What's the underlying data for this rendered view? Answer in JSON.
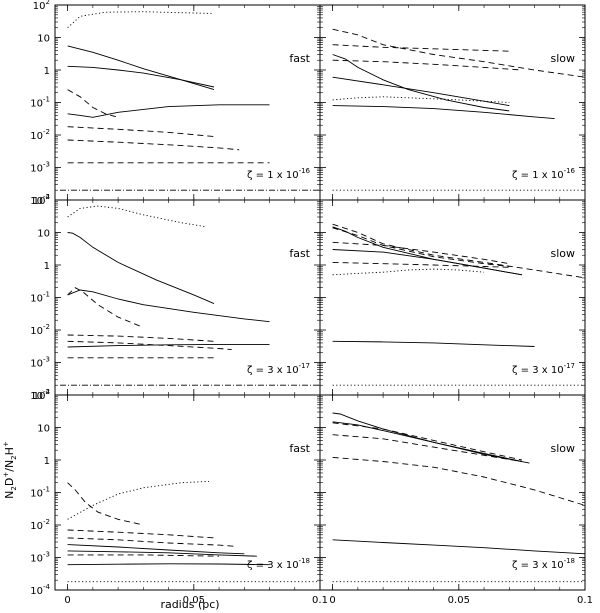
{
  "figure": {
    "ylabel_main": "N",
    "ylabel_sub1": "2",
    "ylabel_mid": "D",
    "ylabel_sup1": "+",
    "ylabel_slash": "/N",
    "ylabel_sub2": "2",
    "ylabel_end": "H",
    "ylabel_sup2": "+",
    "xlabel": "radius (pc)"
  },
  "chart_data": {
    "type": "line",
    "x_range": [
      -0.005,
      0.1
    ],
    "y_range_log10": [
      -4,
      2
    ],
    "x_ticks": [
      0,
      0.05,
      0.1
    ],
    "x_tick_labels": [
      "0",
      "0.05",
      "0.1"
    ],
    "y_ticks_log10": [
      -4,
      -3,
      -2,
      -1,
      0,
      1,
      2
    ],
    "y_tick_labels": [
      {
        "base": "10",
        "exp": "-4"
      },
      {
        "base": "10",
        "exp": "-3"
      },
      {
        "base": "10",
        "exp": "-2"
      },
      {
        "base": "10",
        "exp": "-1"
      },
      {
        "base": "1",
        "exp": ""
      },
      {
        "base": "10",
        "exp": ""
      },
      {
        "base": "10",
        "exp": "2"
      }
    ],
    "panels": [
      {
        "label": "fast",
        "zeta": {
          "prefix": "ζ = 1 x 10",
          "exp": "-16"
        },
        "series": [
          {
            "style": "dotted",
            "x": [
              0,
              0.005,
              0.015,
              0.03,
              0.045,
              0.057
            ],
            "y": [
              20,
              45,
              60,
              62,
              58,
              55
            ]
          },
          {
            "style": "solid",
            "x": [
              0,
              0.01,
              0.02,
              0.03,
              0.045,
              0.058
            ],
            "y": [
              5.5,
              3.5,
              2,
              1.1,
              0.5,
              0.25
            ]
          },
          {
            "style": "solid",
            "x": [
              0,
              0.01,
              0.02,
              0.03,
              0.045,
              0.058
            ],
            "y": [
              1.3,
              1.2,
              1.0,
              0.8,
              0.5,
              0.3
            ]
          },
          {
            "style": "solid",
            "x": [
              0,
              0.005,
              0.01,
              0.02,
              0.04,
              0.06,
              0.08
            ],
            "y": [
              0.045,
              0.04,
              0.035,
              0.05,
              0.075,
              0.085,
              0.085
            ]
          },
          {
            "style": "dashed",
            "x": [
              0,
              0.005,
              0.01,
              0.015,
              0.02
            ],
            "y": [
              0.25,
              0.15,
              0.07,
              0.045,
              0.035
            ]
          },
          {
            "style": "dashed",
            "x": [
              0,
              0.02,
              0.04,
              0.058
            ],
            "y": [
              0.018,
              0.015,
              0.012,
              0.009
            ]
          },
          {
            "style": "dashed",
            "x": [
              0,
              0.02,
              0.04,
              0.06,
              0.068
            ],
            "y": [
              0.007,
              0.006,
              0.005,
              0.004,
              0.0035
            ]
          },
          {
            "style": "dashed",
            "x": [
              0,
              0.04,
              0.08
            ],
            "y": [
              0.0014,
              0.0014,
              0.0014
            ]
          },
          {
            "style": "dashdot",
            "x": [
              -0.003,
              0.1
            ],
            "y": [
              0.0002,
              0.0002
            ]
          }
        ]
      },
      {
        "label": "slow",
        "zeta": {
          "prefix": "ζ = 1 x 10",
          "exp": "-16"
        },
        "series": [
          {
            "style": "dashed",
            "x": [
              0,
              0.01,
              0.02,
              0.04,
              0.06,
              0.08,
              0.1
            ],
            "y": [
              18,
              12,
              6,
              3,
              1.8,
              1,
              0.6
            ]
          },
          {
            "style": "dashed",
            "x": [
              0,
              0.02,
              0.04,
              0.06,
              0.07
            ],
            "y": [
              6,
              5,
              4.5,
              4,
              3.8
            ]
          },
          {
            "style": "dashed",
            "x": [
              0,
              0.02,
              0.04,
              0.06,
              0.075
            ],
            "y": [
              2,
              1.8,
              1.5,
              1.2,
              1
            ]
          },
          {
            "style": "solid",
            "x": [
              0,
              0.005,
              0.01,
              0.02,
              0.03,
              0.045,
              0.06,
              0.07
            ],
            "y": [
              3,
              2.2,
              1.2,
              0.5,
              0.25,
              0.12,
              0.07,
              0.055
            ]
          },
          {
            "style": "solid",
            "x": [
              0,
              0.02,
              0.04,
              0.06,
              0.07
            ],
            "y": [
              0.6,
              0.35,
              0.2,
              0.11,
              0.08
            ]
          },
          {
            "style": "solid",
            "x": [
              0,
              0.02,
              0.04,
              0.06,
              0.08,
              0.088
            ],
            "y": [
              0.08,
              0.075,
              0.065,
              0.05,
              0.036,
              0.032
            ]
          },
          {
            "style": "dotted",
            "x": [
              0,
              0.01,
              0.02,
              0.03,
              0.04,
              0.05,
              0.06,
              0.07
            ],
            "y": [
              0.12,
              0.14,
              0.15,
              0.14,
              0.13,
              0.12,
              0.11,
              0.1
            ]
          },
          {
            "style": "dotted",
            "x": [
              0,
              0.1
            ],
            "y": [
              0.0002,
              0.0002
            ]
          }
        ]
      },
      {
        "label": "fast",
        "zeta": {
          "prefix": "ζ = 3 x 10",
          "exp": "-17"
        },
        "series": [
          {
            "style": "dotted",
            "x": [
              0,
              0.005,
              0.012,
              0.02,
              0.03,
              0.045,
              0.055
            ],
            "y": [
              30,
              55,
              65,
              55,
              35,
              20,
              15
            ]
          },
          {
            "style": "solid",
            "x": [
              0,
              0.002,
              0.005,
              0.01,
              0.02,
              0.035,
              0.05,
              0.058
            ],
            "y": [
              10,
              9.5,
              7,
              3.5,
              1.2,
              0.35,
              0.12,
              0.065
            ]
          },
          {
            "style": "solid",
            "x": [
              0,
              0.005,
              0.01,
              0.02,
              0.03,
              0.05,
              0.07,
              0.08
            ],
            "y": [
              0.12,
              0.17,
              0.15,
              0.09,
              0.06,
              0.035,
              0.022,
              0.018
            ]
          },
          {
            "style": "dashed",
            "x": [
              0,
              0.003,
              0.006,
              0.012,
              0.02,
              0.03
            ],
            "y": [
              0.12,
              0.2,
              0.15,
              0.06,
              0.025,
              0.012
            ]
          },
          {
            "style": "dashed",
            "x": [
              0,
              0.02,
              0.04,
              0.058
            ],
            "y": [
              0.007,
              0.0065,
              0.0055,
              0.0045
            ]
          },
          {
            "style": "solid",
            "x": [
              0,
              0.02,
              0.04,
              0.06,
              0.08
            ],
            "y": [
              0.003,
              0.0033,
              0.0035,
              0.0036,
              0.0036
            ]
          },
          {
            "style": "dashed",
            "x": [
              0,
              0.02,
              0.04,
              0.06,
              0.065
            ],
            "y": [
              0.0045,
              0.004,
              0.0033,
              0.0027,
              0.0025
            ]
          },
          {
            "style": "dashed",
            "x": [
              0,
              0.03,
              0.058
            ],
            "y": [
              0.0014,
              0.0014,
              0.0014
            ]
          },
          {
            "style": "dashdot",
            "x": [
              -0.003,
              0.1
            ],
            "y": [
              0.0002,
              0.0002
            ]
          }
        ]
      },
      {
        "label": "slow",
        "zeta": {
          "prefix": "ζ = 3 x 10",
          "exp": "-17"
        },
        "series": [
          {
            "style": "dashed",
            "x": [
              0,
              0.01,
              0.02,
              0.04,
              0.06,
              0.08,
              0.1
            ],
            "y": [
              18,
              10,
              4.5,
              2,
              1.2,
              0.7,
              0.4
            ]
          },
          {
            "style": "dashed",
            "x": [
              0,
              0.01,
              0.02,
              0.04,
              0.06,
              0.07
            ],
            "y": [
              14,
              8,
              4,
              1.8,
              1.1,
              0.9
            ]
          },
          {
            "style": "dashed",
            "x": [
              0,
              0.02,
              0.04,
              0.06,
              0.07
            ],
            "y": [
              5,
              4,
              2.5,
              1.5,
              1.1
            ]
          },
          {
            "style": "solid",
            "x": [
              0,
              0.005,
              0.01,
              0.02,
              0.04,
              0.06,
              0.075
            ],
            "y": [
              15,
              11,
              7,
              3.5,
              1.5,
              0.8,
              0.5
            ]
          },
          {
            "style": "solid",
            "x": [
              0,
              0.02,
              0.04,
              0.06,
              0.075
            ],
            "y": [
              3,
              2.5,
              1.5,
              0.8,
              0.5
            ]
          },
          {
            "style": "dashed",
            "x": [
              0,
              0.02,
              0.04,
              0.06,
              0.07
            ],
            "y": [
              1.2,
              1.1,
              1,
              0.9,
              0.85
            ]
          },
          {
            "style": "dotted",
            "x": [
              0,
              0.01,
              0.02,
              0.03,
              0.04,
              0.05,
              0.06
            ],
            "y": [
              0.5,
              0.55,
              0.6,
              0.7,
              0.75,
              0.7,
              0.6
            ]
          },
          {
            "style": "solid",
            "x": [
              0,
              0.02,
              0.04,
              0.06,
              0.08
            ],
            "y": [
              0.0045,
              0.0043,
              0.004,
              0.0035,
              0.0031
            ]
          },
          {
            "style": "dotted",
            "x": [
              0,
              0.1
            ],
            "y": [
              0.0002,
              0.0002
            ]
          }
        ]
      },
      {
        "label": "fast",
        "zeta": {
          "prefix": "ζ = 3 x 10",
          "exp": "-18"
        },
        "series": [
          {
            "style": "dotted",
            "x": [
              0,
              0.01,
              0.02,
              0.03,
              0.045,
              0.056
            ],
            "y": [
              0.015,
              0.04,
              0.09,
              0.14,
              0.2,
              0.22
            ]
          },
          {
            "style": "dashed",
            "x": [
              0,
              0.003,
              0.007,
              0.012,
              0.02,
              0.03
            ],
            "y": [
              0.2,
              0.12,
              0.05,
              0.025,
              0.015,
              0.01
            ]
          },
          {
            "style": "dashed",
            "x": [
              0,
              0.02,
              0.04,
              0.058
            ],
            "y": [
              0.007,
              0.006,
              0.005,
              0.004
            ]
          },
          {
            "style": "dashed",
            "x": [
              0,
              0.02,
              0.04,
              0.06,
              0.067
            ],
            "y": [
              0.004,
              0.0035,
              0.0028,
              0.0024,
              0.0022
            ]
          },
          {
            "style": "solid",
            "x": [
              0,
              0.02,
              0.04,
              0.06,
              0.07
            ],
            "y": [
              0.0025,
              0.0021,
              0.0017,
              0.0014,
              0.0013
            ]
          },
          {
            "style": "solid",
            "x": [
              0,
              0.02,
              0.04,
              0.06,
              0.075
            ],
            "y": [
              0.0016,
              0.0015,
              0.0014,
              0.0012,
              0.0011
            ]
          },
          {
            "style": "dashed",
            "x": [
              0,
              0.03,
              0.06
            ],
            "y": [
              0.0012,
              0.0012,
              0.0011
            ]
          },
          {
            "style": "solid",
            "x": [
              0,
              0.02,
              0.04,
              0.06,
              0.08
            ],
            "y": [
              0.0006,
              0.00062,
              0.00064,
              0.00063,
              0.0006
            ]
          },
          {
            "style": "dotted",
            "x": [
              0,
              0.1
            ],
            "y": [
              0.00018,
              0.00018
            ]
          }
        ]
      },
      {
        "label": "slow",
        "zeta": {
          "prefix": "ζ = 3 x 10",
          "exp": "-18"
        },
        "series": [
          {
            "style": "solid",
            "x": [
              0,
              0.003,
              0.01,
              0.02,
              0.04,
              0.06,
              0.078
            ],
            "y": [
              28,
              26,
              16,
              9,
              3.5,
              1.5,
              0.8
            ]
          },
          {
            "style": "solid",
            "x": [
              0,
              0.01,
              0.02,
              0.04,
              0.06,
              0.075
            ],
            "y": [
              15,
              12,
              8,
              3.5,
              1.6,
              0.9
            ]
          },
          {
            "style": "dashed",
            "x": [
              0,
              0.02,
              0.04,
              0.06,
              0.075
            ],
            "y": [
              14,
              9,
              4,
              1.8,
              1
            ]
          },
          {
            "style": "dashed",
            "x": [
              0,
              0.02,
              0.04,
              0.06,
              0.075
            ],
            "y": [
              6,
              4.5,
              2.5,
              1.4,
              0.9
            ]
          },
          {
            "style": "dashed",
            "x": [
              0,
              0.02,
              0.04,
              0.06,
              0.08,
              0.1
            ],
            "y": [
              1.2,
              0.9,
              0.6,
              0.3,
              0.12,
              0.04
            ]
          },
          {
            "style": "solid",
            "x": [
              0,
              0.02,
              0.04,
              0.06,
              0.08,
              0.1
            ],
            "y": [
              0.0035,
              0.0029,
              0.0024,
              0.002,
              0.0016,
              0.0013
            ]
          },
          {
            "style": "dotted",
            "x": [
              0,
              0.1
            ],
            "y": [
              0.00018,
              0.00018
            ]
          }
        ]
      }
    ]
  }
}
